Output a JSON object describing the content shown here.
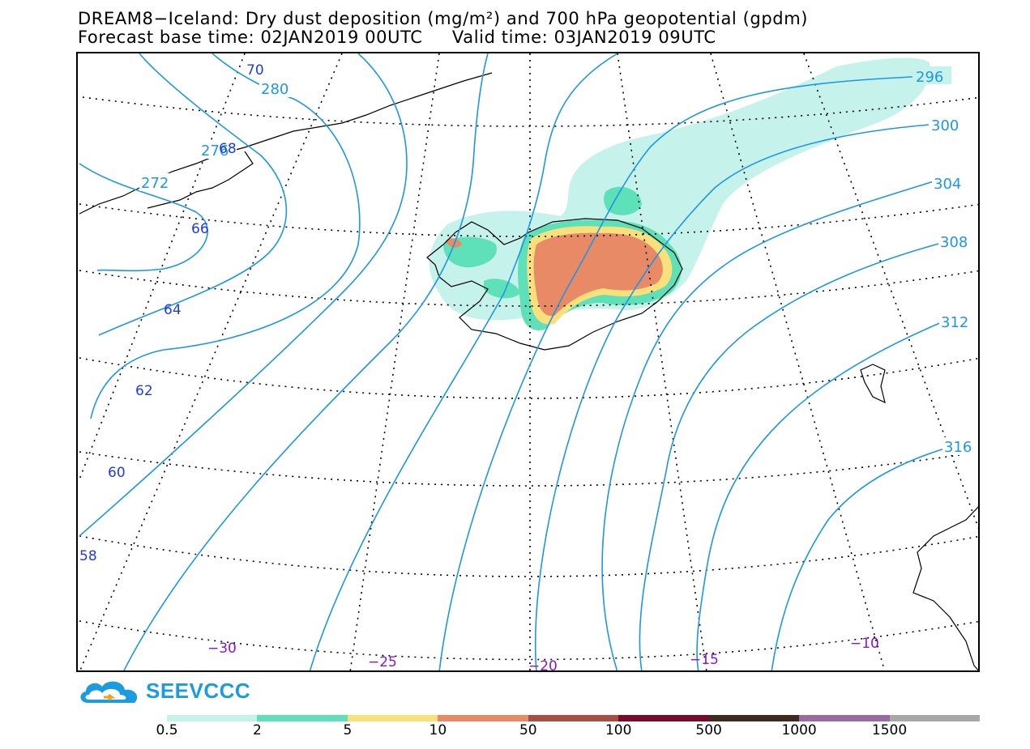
{
  "header": {
    "title_line1": "DREAM8−Iceland: Dry dust deposition (mg/m²) and 700 hPa geopotential (gpdm)",
    "title_line2": "Forecast base time: 02JAN2019 00UTC     Valid time: 03JAN2019 09UTC"
  },
  "map": {
    "contour_labels_right": [
      "296",
      "300",
      "304",
      "308",
      "312",
      "316"
    ],
    "contour_labels_left": [
      "280",
      "276",
      "272"
    ],
    "lat_labels": [
      "70",
      "68",
      "66",
      "64",
      "62",
      "60",
      "58"
    ],
    "lon_labels": [
      "−30",
      "−25",
      "−20",
      "−15",
      "−10"
    ],
    "contour_color": "#1e96e6",
    "lat_label_color": "#1e3be6",
    "lon_label_color": "#8a16c8"
  },
  "logo": {
    "text": "SEEVCCC",
    "color": "#1b9be0"
  },
  "legend": {
    "labels": [
      "0.5",
      "2",
      "5",
      "10",
      "50",
      "100",
      "500",
      "1000",
      "1500"
    ],
    "colors": [
      "#c6f2ec",
      "#5ee0b8",
      "#f9e07a",
      "#e88a66",
      "#a84e42",
      "#7a0a2a",
      "#3e2a1e",
      "#9a6aa4",
      "#a8a8a8"
    ]
  }
}
